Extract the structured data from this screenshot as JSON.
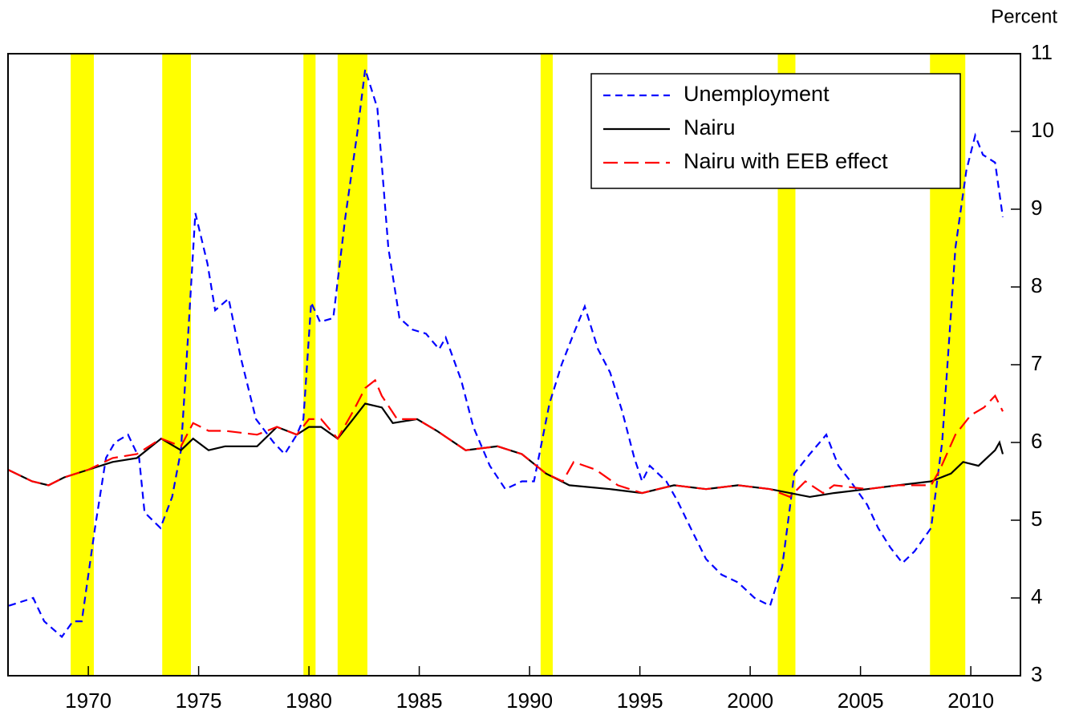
{
  "chart_data": {
    "type": "line",
    "y_axis_label": "Percent",
    "xlim": [
      1966.36,
      2012.25
    ],
    "xticks": [
      1970,
      1975,
      1980,
      1985,
      1990,
      1995,
      2000,
      2005,
      2010
    ],
    "ylim": [
      3,
      11
    ],
    "yticks": [
      3,
      4,
      5,
      6,
      7,
      8,
      9,
      10,
      11
    ],
    "shading_color": "#ffff00",
    "shading": [
      [
        1969.2,
        1970.25
      ],
      [
        1973.35,
        1974.65
      ],
      [
        1979.75,
        1980.3
      ],
      [
        1981.3,
        1982.65
      ],
      [
        1990.5,
        1991.05
      ],
      [
        2001.25,
        2002.05
      ],
      [
        2008.15,
        2009.75
      ]
    ],
    "legend": "upper right",
    "series": [
      {
        "name": "Unemployment",
        "color": "#0000ff",
        "dash": "9,6",
        "x": [
          1966.4,
          1967.5,
          1968.0,
          1968.8,
          1969.3,
          1969.7,
          1970.3,
          1970.8,
          1971.2,
          1971.8,
          1972.3,
          1972.55,
          1973.27,
          1973.8,
          1974.2,
          1974.55,
          1974.85,
          1975.4,
          1975.75,
          1976.36,
          1976.9,
          1977.6,
          1978.4,
          1978.9,
          1979.45,
          1979.75,
          1980.1,
          1980.5,
          1981.1,
          1981.65,
          1982.2,
          1982.55,
          1983.1,
          1983.6,
          1984.1,
          1984.7,
          1985.3,
          1985.9,
          1986.2,
          1986.9,
          1987.45,
          1988.2,
          1988.9,
          1989.65,
          1990.2,
          1990.9,
          1991.45,
          1992.0,
          1992.5,
          1993.1,
          1993.65,
          1994.2,
          1994.75,
          1995.1,
          1995.45,
          1996.2,
          1996.7,
          1997.3,
          1998.0,
          1998.7,
          1999.45,
          2000.2,
          2000.9,
          2001.45,
          2002.0,
          2002.7,
          2003.45,
          2004.0,
          2004.55,
          2005.3,
          2005.8,
          2006.35,
          2006.9,
          2007.45,
          2008.2,
          2008.7,
          2009.3,
          2009.8,
          2010.2,
          2010.55,
          2011.1,
          2011.45
        ],
        "values": [
          3.9,
          4.0,
          3.7,
          3.5,
          3.7,
          3.7,
          4.9,
          5.8,
          6.0,
          6.1,
          5.8,
          5.1,
          4.9,
          5.3,
          5.9,
          7.5,
          8.95,
          8.3,
          7.7,
          7.85,
          7.1,
          6.3,
          6.0,
          5.85,
          6.1,
          6.3,
          7.8,
          7.55,
          7.6,
          8.9,
          10.0,
          10.8,
          10.3,
          8.5,
          7.6,
          7.45,
          7.4,
          7.2,
          7.35,
          6.8,
          6.2,
          5.7,
          5.4,
          5.5,
          5.5,
          6.5,
          7.0,
          7.4,
          7.75,
          7.2,
          6.9,
          6.4,
          5.8,
          5.5,
          5.7,
          5.5,
          5.25,
          4.9,
          4.5,
          4.3,
          4.2,
          4.0,
          3.9,
          4.4,
          5.6,
          5.85,
          6.1,
          5.7,
          5.5,
          5.2,
          4.9,
          4.65,
          4.45,
          4.6,
          4.9,
          6.0,
          8.5,
          9.5,
          9.95,
          9.7,
          9.6,
          8.9
        ]
      },
      {
        "name": "Nairu",
        "color": "#000000",
        "dash": "none",
        "x": [
          1966.36,
          1967.45,
          1968.2,
          1968.9,
          1970.0,
          1971.1,
          1972.2,
          1973.3,
          1974.2,
          1974.75,
          1975.45,
          1976.2,
          1977.65,
          1978.55,
          1979.45,
          1980.0,
          1980.55,
          1981.3,
          1982.0,
          1982.55,
          1983.3,
          1983.8,
          1984.9,
          1985.8,
          1987.1,
          1988.55,
          1989.65,
          1990.75,
          1991.8,
          1993.65,
          1995.1,
          1996.55,
          1998.0,
          1999.45,
          2000.9,
          2001.8,
          2002.7,
          2003.8,
          2005.3,
          2006.7,
          2008.2,
          2009.1,
          2009.65,
          2010.35,
          2011.1,
          2011.3,
          2011.45
        ],
        "values": [
          5.65,
          5.5,
          5.45,
          5.55,
          5.65,
          5.75,
          5.8,
          6.05,
          5.9,
          6.05,
          5.9,
          5.95,
          5.95,
          6.2,
          6.1,
          6.2,
          6.2,
          6.05,
          6.3,
          6.5,
          6.45,
          6.25,
          6.3,
          6.15,
          5.9,
          5.95,
          5.85,
          5.6,
          5.45,
          5.4,
          5.35,
          5.45,
          5.4,
          5.45,
          5.4,
          5.35,
          5.3,
          5.35,
          5.4,
          5.45,
          5.5,
          5.6,
          5.75,
          5.7,
          5.9,
          6.0,
          5.85
        ]
      },
      {
        "name": "Nairu with EEB effect",
        "color": "#ff0000",
        "dash": "18,8",
        "x": [
          1966.36,
          1967.45,
          1968.2,
          1968.9,
          1970.0,
          1971.1,
          1972.2,
          1973.3,
          1974.2,
          1974.75,
          1975.45,
          1976.2,
          1977.65,
          1978.55,
          1979.45,
          1980.0,
          1980.55,
          1981.3,
          1982.0,
          1982.55,
          1983.0,
          1983.3,
          1984.0,
          1984.9,
          1985.8,
          1987.1,
          1988.55,
          1989.65,
          1990.75,
          1991.5,
          1992.0,
          1993.0,
          1994.0,
          1995.1,
          1996.55,
          1998.0,
          1999.45,
          2000.9,
          2001.8,
          2002.5,
          2003.3,
          2003.8,
          2005.3,
          2006.7,
          2008.2,
          2008.6,
          2009.3,
          2010.0,
          2010.6,
          2011.1,
          2011.45
        ],
        "values": [
          5.65,
          5.5,
          5.45,
          5.55,
          5.65,
          5.8,
          5.85,
          6.05,
          5.95,
          6.25,
          6.15,
          6.15,
          6.1,
          6.2,
          6.1,
          6.3,
          6.3,
          6.05,
          6.4,
          6.7,
          6.8,
          6.6,
          6.3,
          6.3,
          6.15,
          5.9,
          5.95,
          5.85,
          5.6,
          5.5,
          5.75,
          5.65,
          5.45,
          5.35,
          5.45,
          5.4,
          5.45,
          5.4,
          5.3,
          5.5,
          5.35,
          5.45,
          5.4,
          5.45,
          5.45,
          5.65,
          6.1,
          6.35,
          6.45,
          6.6,
          6.4
        ]
      }
    ]
  }
}
